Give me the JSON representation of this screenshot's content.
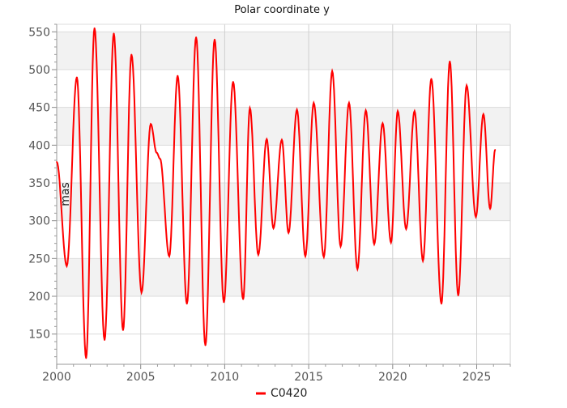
{
  "chart_data": {
    "type": "line",
    "title": "Polar coordinate y",
    "xlabel": "",
    "ylabel": "mas",
    "xlim": [
      2000,
      2027
    ],
    "ylim": [
      110,
      560
    ],
    "xticks": [
      2000,
      2005,
      2010,
      2015,
      2020,
      2025
    ],
    "yticks": [
      150,
      200,
      250,
      300,
      350,
      400,
      450,
      500,
      550
    ],
    "grid": true,
    "legend_position": "bottom-center",
    "series": [
      {
        "name": "C0420",
        "color": "#ff0000",
        "x": [
          2000.0,
          2000.6,
          2001.2,
          2001.75,
          2002.25,
          2002.85,
          2003.4,
          2003.95,
          2004.45,
          2005.05,
          2005.6,
          2005.95,
          2006.15,
          2006.7,
          2007.2,
          2007.75,
          2008.3,
          2008.85,
          2009.4,
          2009.95,
          2010.5,
          2011.1,
          2011.5,
          2012.0,
          2012.5,
          2012.9,
          2013.4,
          2013.8,
          2014.3,
          2014.8,
          2015.3,
          2015.9,
          2016.4,
          2016.9,
          2017.4,
          2017.9,
          2018.4,
          2018.9,
          2019.4,
          2019.9,
          2020.3,
          2020.8,
          2021.3,
          2021.8,
          2022.3,
          2022.9,
          2023.4,
          2023.9,
          2024.4,
          2024.95,
          2025.4,
          2025.8,
          2026.1
        ],
        "y": [
          378,
          240,
          490,
          118,
          555,
          142,
          548,
          155,
          520,
          205,
          428,
          390,
          382,
          253,
          492,
          190,
          543,
          135,
          540,
          192,
          484,
          196,
          449,
          255,
          408,
          290,
          407,
          284,
          447,
          253,
          456,
          252,
          498,
          266,
          456,
          236,
          446,
          269,
          429,
          271,
          445,
          289,
          445,
          247,
          488,
          190,
          511,
          201,
          479,
          305,
          441,
          316,
          394
        ]
      }
    ]
  }
}
